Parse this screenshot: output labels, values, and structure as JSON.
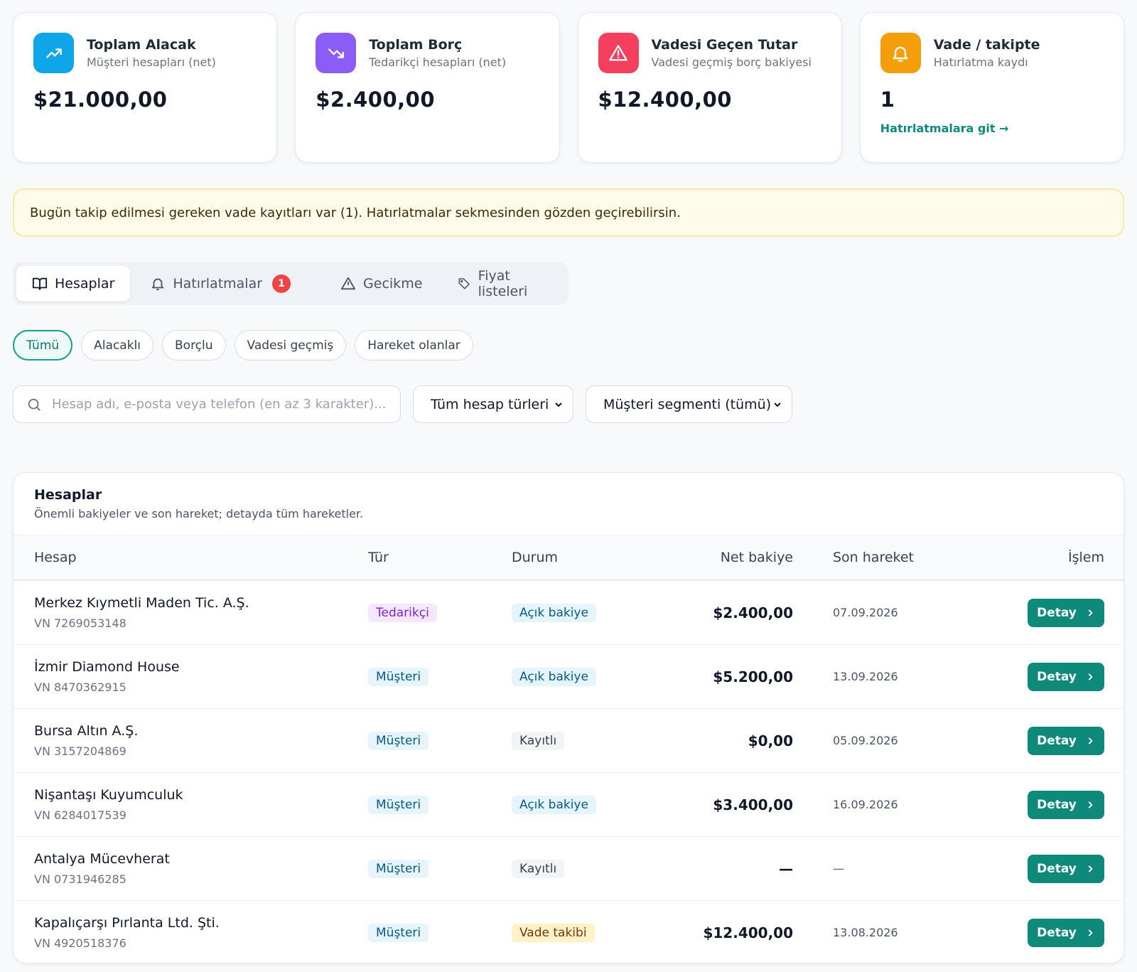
{
  "cards": [
    {
      "title": "Toplam Alacak",
      "subtitle": "Müşteri hesapları (net)",
      "value": "$21.000,00"
    },
    {
      "title": "Toplam Borç",
      "subtitle": "Tedarikçi hesapları (net)",
      "value": "$2.400,00"
    },
    {
      "title": "Vadesi Geçen Tutar",
      "subtitle": "Vadesi geçmiş borç bakiyesi",
      "value": "$12.400,00"
    },
    {
      "title": "Vade / takipte",
      "subtitle": "Hatırlatma kaydı",
      "value": "1",
      "link": "Hatırlatmalara git →"
    }
  ],
  "alert": "Bugün takip edilmesi gereken vade kayıtları var (1). Hatırlatmalar sekmesinden gözden geçirebilirsin.",
  "tabs": [
    {
      "label": "Hesaplar"
    },
    {
      "label": "Hatırlatmalar",
      "badge": "1"
    },
    {
      "label": "Gecikme"
    },
    {
      "label": "Fiyat listeleri"
    }
  ],
  "filters": [
    "Tümü",
    "Alacaklı",
    "Borçlu",
    "Vadesi geçmiş",
    "Hareket olanlar"
  ],
  "search": {
    "placeholder": "Hesap adı, e-posta veya telefon (en az 3 karakter)..."
  },
  "selects": [
    "Tüm hesap türleri",
    "Müşteri segmenti (tümü)"
  ],
  "table": {
    "title": "Hesaplar",
    "subtitle": "Önemli bakiyeler ve son hareket; detayda tüm hareketler.",
    "columns": [
      "Hesap",
      "Tür",
      "Durum",
      "Net bakiye",
      "Son hareket",
      "İşlem"
    ],
    "rows": [
      {
        "name": "Merkez Kıymetli Maden Tic. A.Ş.",
        "tax": "VN 7269053148",
        "type": "Tedarikçi",
        "status": "Açık bakiye",
        "balance": "$2.400,00",
        "last": "07.09.2026",
        "action": "Detay"
      },
      {
        "name": "İzmir Diamond House",
        "tax": "VN 8470362915",
        "type": "Müşteri",
        "status": "Açık bakiye",
        "balance": "$5.200,00",
        "last": "13.09.2026",
        "action": "Detay"
      },
      {
        "name": "Bursa Altın A.Ş.",
        "tax": "VN 3157204869",
        "type": "Müşteri",
        "status": "Kayıtlı",
        "balance": "$0,00",
        "last": "05.09.2026",
        "action": "Detay"
      },
      {
        "name": "Nişantaşı Kuyumculuk",
        "tax": "VN 6284017539",
        "type": "Müşteri",
        "status": "Açık bakiye",
        "balance": "$3.400,00",
        "last": "16.09.2026",
        "action": "Detay"
      },
      {
        "name": "Antalya Mücevherat",
        "tax": "VN 0731946285",
        "type": "Müşteri",
        "status": "Kayıtlı",
        "balance": "—",
        "last": "—",
        "action": "Detay"
      },
      {
        "name": "Kapalıçarşı Pırlanta Ltd. Şti.",
        "tax": "VN 4920518376",
        "type": "Müşteri",
        "status": "Vade takibi",
        "balance": "$12.400,00",
        "last": "13.08.2026",
        "action": "Detay"
      }
    ]
  }
}
